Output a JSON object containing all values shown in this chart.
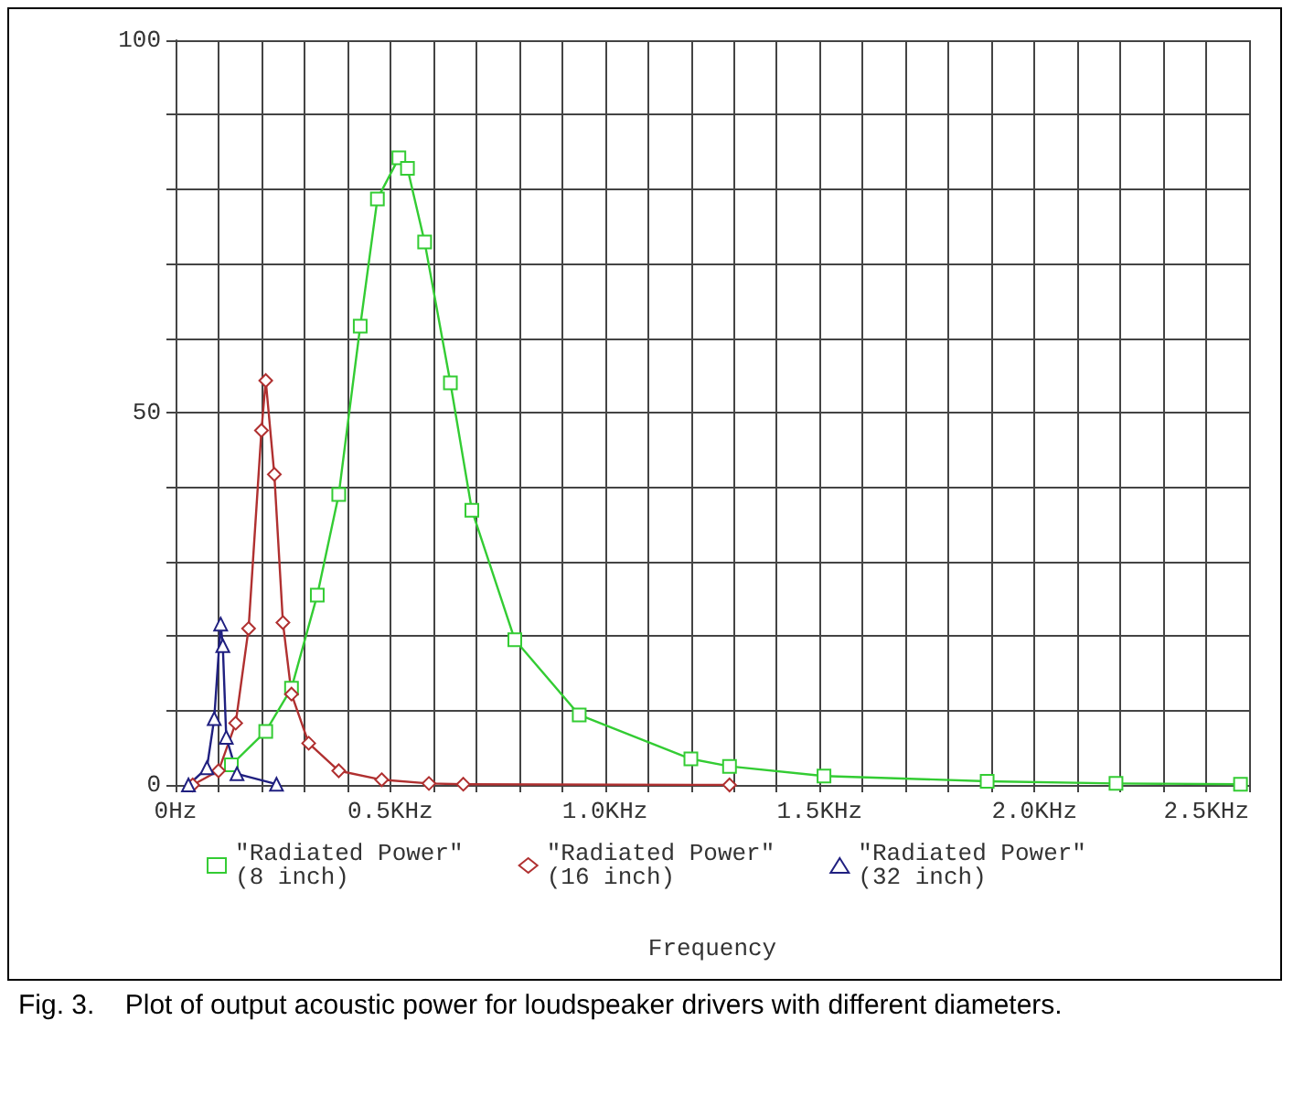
{
  "chart_data": {
    "type": "line",
    "xlabel": "Frequency",
    "annotations": [
      "Fig. 3.    Plot of output acoustic power for loudspeaker drivers with different diameters."
    ],
    "xlim": [
      0,
      2.5
    ],
    "ylim": [
      0,
      100
    ],
    "xticks": [
      {
        "value": 0,
        "label": "0Hz"
      },
      {
        "value": 0.1,
        "label": null
      },
      {
        "value": 0.2,
        "label": null
      },
      {
        "value": 0.3,
        "label": null
      },
      {
        "value": 0.4,
        "label": null
      },
      {
        "value": 0.5,
        "label": "0.5KHz"
      },
      {
        "value": 0.6,
        "label": null
      },
      {
        "value": 0.7,
        "label": null
      },
      {
        "value": 0.8,
        "label": null
      },
      {
        "value": 0.9,
        "label": null
      },
      {
        "value": 1.0,
        "label": "1.0KHz"
      },
      {
        "value": 1.1,
        "label": null
      },
      {
        "value": 1.2,
        "label": null
      },
      {
        "value": 1.3,
        "label": null
      },
      {
        "value": 1.4,
        "label": null
      },
      {
        "value": 1.5,
        "label": "1.5KHz"
      },
      {
        "value": 1.6,
        "label": null
      },
      {
        "value": 1.7,
        "label": null
      },
      {
        "value": 1.8,
        "label": null
      },
      {
        "value": 1.9,
        "label": null
      },
      {
        "value": 2.0,
        "label": "2.0KHz"
      },
      {
        "value": 2.1,
        "label": null
      },
      {
        "value": 2.2,
        "label": null
      },
      {
        "value": 2.3,
        "label": null
      },
      {
        "value": 2.4,
        "label": null
      },
      {
        "value": 2.5,
        "label": "2.5KHz"
      }
    ],
    "yticks": [
      0,
      {
        "value": 10,
        "label": null
      },
      {
        "value": 20,
        "label": null
      },
      {
        "value": 30,
        "label": null
      },
      {
        "value": 40,
        "label": null
      },
      50,
      {
        "value": 60,
        "label": null
      },
      {
        "value": 70,
        "label": null
      },
      {
        "value": 80,
        "label": null
      },
      {
        "value": 90,
        "label": null
      },
      100
    ],
    "grid": true,
    "legend": "bottom",
    "line_style": "solid",
    "series": [
      {
        "name": "\"Radiated Power\"\n(8 inch)",
        "color": "#33cc33",
        "marker": "square",
        "x": [
          0.13,
          0.21,
          0.27,
          0.33,
          0.38,
          0.43,
          0.47,
          0.52,
          0.54,
          0.58,
          0.64,
          0.69,
          0.79,
          0.94,
          1.2,
          1.29,
          1.51,
          1.89,
          2.19,
          2.48
        ],
        "values": [
          2.7,
          7.2,
          13,
          25.5,
          39,
          61.6,
          78.7,
          84.2,
          82.8,
          72.9,
          54,
          36.9,
          19.5,
          9.4,
          3.5,
          2.5,
          1.2,
          0.5,
          0.2,
          0.1
        ]
      },
      {
        "name": "\"Radiated Power\"\n(16 inch)",
        "color": "#b03030",
        "marker": "diamond",
        "x": [
          0.04,
          0.1,
          0.14,
          0.17,
          0.2,
          0.21,
          0.23,
          0.25,
          0.27,
          0.31,
          0.38,
          0.48,
          0.59,
          0.67,
          1.29
        ],
        "values": [
          0,
          1.9,
          8.3,
          21,
          47.6,
          54.3,
          41.7,
          21.8,
          12.2,
          5.6,
          1.9,
          0.7,
          0.2,
          0.1,
          0
        ]
      },
      {
        "name": "\"Radiated Power\"\n(32 inch)",
        "color": "#202080",
        "marker": "triangle",
        "x": [
          0.03,
          0.073,
          0.09,
          0.105,
          0.11,
          0.118,
          0.143,
          0.235
        ],
        "values": [
          0,
          2.3,
          8.9,
          21.6,
          18.7,
          6.4,
          1.5,
          0.1
        ]
      }
    ]
  }
}
